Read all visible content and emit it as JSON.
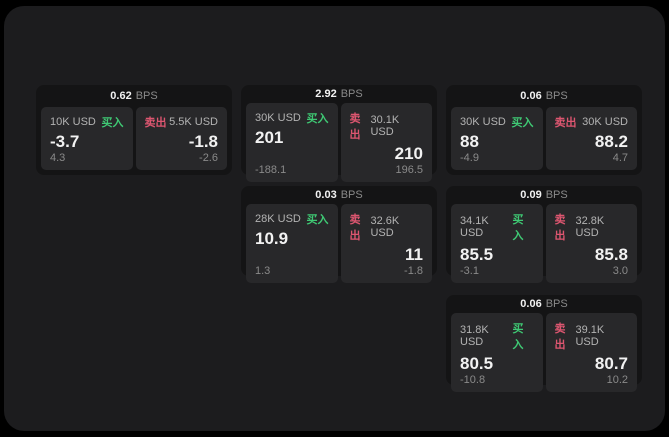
{
  "theme": {
    "page_bg": "#000000",
    "container_bg": "#1c1c1e",
    "card_bg": "#141415",
    "panel_bg": "#28282a",
    "text_primary": "#f2f2f2",
    "text_secondary": "#b3b3b3",
    "text_muted": "#8a8a8a",
    "buy_color": "#3fc974",
    "sell_color": "#dd5670"
  },
  "labels": {
    "bps": "BPS",
    "buy": "买入",
    "sell": "卖出"
  },
  "cards": [
    {
      "row": 1,
      "col": 1,
      "bps": "0.62",
      "buy": {
        "amount": "10K USD",
        "price": "-3.7",
        "sub": "4.3"
      },
      "sell": {
        "amount": "5.5K USD",
        "price": "-1.8",
        "sub": "-2.6"
      }
    },
    {
      "row": 1,
      "col": 2,
      "bps": "2.92",
      "buy": {
        "amount": "30K USD",
        "price": "201",
        "sub": "-188.1"
      },
      "sell": {
        "amount": "30.1K USD",
        "price": "210",
        "sub": "196.5"
      }
    },
    {
      "row": 1,
      "col": 3,
      "bps": "0.06",
      "buy": {
        "amount": "30K USD",
        "price": "88",
        "sub": "-4.9"
      },
      "sell": {
        "amount": "30K USD",
        "price": "88.2",
        "sub": "4.7"
      }
    },
    {
      "row": 2,
      "col": 2,
      "bps": "0.03",
      "buy": {
        "amount": "28K USD",
        "price": "10.9",
        "sub": "1.3"
      },
      "sell": {
        "amount": "32.6K USD",
        "price": "11",
        "sub": "-1.8"
      }
    },
    {
      "row": 2,
      "col": 3,
      "bps": "0.09",
      "buy": {
        "amount": "34.1K USD",
        "price": "85.5",
        "sub": "-3.1"
      },
      "sell": {
        "amount": "32.8K USD",
        "price": "85.8",
        "sub": "3.0"
      }
    },
    {
      "row": 3,
      "col": 3,
      "bps": "0.06",
      "buy": {
        "amount": "31.8K USD",
        "price": "80.5",
        "sub": "-10.8"
      },
      "sell": {
        "amount": "39.1K USD",
        "price": "80.7",
        "sub": "10.2"
      }
    }
  ]
}
